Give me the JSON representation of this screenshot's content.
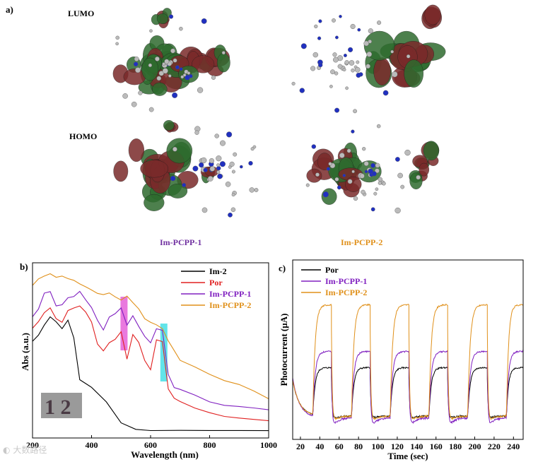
{
  "panel_a": {
    "label": "a)",
    "orbital_labels": [
      "LUMO",
      "HOMO"
    ],
    "molecule_names": [
      {
        "text": "Im-PCPP-1",
        "color": "#7030a0"
      },
      {
        "text": "Im-PCPP-2",
        "color": "#e0901a"
      }
    ]
  },
  "chart_data": [
    {
      "type": "line",
      "panel_label": "b)",
      "xlabel": "Wavelength (nm)",
      "ylabel": "Abs (a.u.)",
      "xlim": [
        200,
        1000
      ],
      "xticks": [
        200,
        400,
        600,
        800,
        1000
      ],
      "ylim": [
        0,
        1
      ],
      "highlight_bands": [
        {
          "x": 510,
          "color": "#e040d0"
        },
        {
          "x": 645,
          "color": "#20d8e0"
        }
      ],
      "inset_text": "1 2",
      "legend_position": "top-right",
      "series": [
        {
          "name": "Im-2",
          "color": "#000000",
          "x": [
            200,
            220,
            240,
            260,
            280,
            300,
            320,
            340,
            360,
            400,
            450,
            500,
            550,
            600,
            700,
            800,
            900,
            1000
          ],
          "y": [
            0.58,
            0.62,
            0.68,
            0.73,
            0.7,
            0.66,
            0.71,
            0.6,
            0.34,
            0.29,
            0.2,
            0.07,
            0.03,
            0.02,
            0.02,
            0.02,
            0.02,
            0.02
          ]
        },
        {
          "name": "Por",
          "color": "#e02020",
          "x": [
            200,
            220,
            240,
            260,
            280,
            300,
            320,
            340,
            360,
            380,
            400,
            420,
            440,
            460,
            480,
            500,
            520,
            540,
            560,
            580,
            600,
            620,
            640,
            660,
            680,
            700,
            750,
            800,
            850,
            900,
            950,
            1000
          ],
          "y": [
            0.66,
            0.7,
            0.76,
            0.79,
            0.72,
            0.7,
            0.77,
            0.79,
            0.8,
            0.76,
            0.7,
            0.56,
            0.52,
            0.57,
            0.59,
            0.64,
            0.47,
            0.62,
            0.57,
            0.46,
            0.4,
            0.59,
            0.58,
            0.28,
            0.22,
            0.2,
            0.16,
            0.13,
            0.11,
            0.1,
            0.09,
            0.08
          ]
        },
        {
          "name": "Im-PCPP-1",
          "color": "#8020c0",
          "x": [
            200,
            220,
            240,
            260,
            280,
            300,
            320,
            340,
            360,
            380,
            400,
            420,
            440,
            460,
            480,
            500,
            520,
            540,
            560,
            580,
            600,
            620,
            640,
            660,
            680,
            700,
            750,
            800,
            850,
            900,
            950,
            1000
          ],
          "y": [
            0.73,
            0.78,
            0.88,
            0.89,
            0.8,
            0.81,
            0.85,
            0.86,
            0.89,
            0.84,
            0.79,
            0.71,
            0.65,
            0.73,
            0.75,
            0.79,
            0.68,
            0.74,
            0.67,
            0.61,
            0.57,
            0.66,
            0.65,
            0.37,
            0.29,
            0.28,
            0.24,
            0.2,
            0.18,
            0.17,
            0.16,
            0.15
          ]
        },
        {
          "name": "Im-PCPP-2",
          "color": "#e0901a",
          "x": [
            200,
            220,
            240,
            260,
            280,
            300,
            320,
            340,
            360,
            380,
            400,
            420,
            440,
            460,
            480,
            500,
            520,
            540,
            560,
            580,
            600,
            620,
            640,
            660,
            680,
            700,
            750,
            800,
            850,
            900,
            950,
            1000
          ],
          "y": [
            0.93,
            0.97,
            0.99,
            1.0,
            0.98,
            0.99,
            0.97,
            0.96,
            0.94,
            0.92,
            0.9,
            0.88,
            0.87,
            0.88,
            0.86,
            0.84,
            0.86,
            0.82,
            0.78,
            0.72,
            0.7,
            0.68,
            0.66,
            0.58,
            0.52,
            0.46,
            0.42,
            0.37,
            0.33,
            0.31,
            0.27,
            0.22
          ]
        }
      ]
    },
    {
      "type": "line",
      "panel_label": "c)",
      "xlabel": "Time (sec)",
      "ylabel": "Photocurrent (µA)",
      "xlim": [
        12,
        250
      ],
      "xticks": [
        20,
        40,
        60,
        80,
        100,
        120,
        140,
        160,
        180,
        200,
        220,
        240
      ],
      "ylim": [
        0,
        1
      ],
      "legend_position": "top-left",
      "series": [
        {
          "name": "Por",
          "color": "#000000",
          "on_off_times": [
            [
              33,
              52
            ],
            [
              73,
              92
            ],
            [
              113,
              132
            ],
            [
              153,
              172
            ],
            [
              193,
              213
            ],
            [
              233,
              250
            ]
          ],
          "start_level": 0.33,
          "baseline": 0.13,
          "plateau": 0.4,
          "drop_floor": 0.11
        },
        {
          "name": "Im-PCPP-1",
          "color": "#8020c0",
          "on_off_times": [
            [
              33,
              52
            ],
            [
              73,
              92
            ],
            [
              113,
              132
            ],
            [
              153,
              172
            ],
            [
              193,
              213
            ],
            [
              233,
              250
            ]
          ],
          "start_level": 0.34,
          "baseline": 0.12,
          "plateau": 0.49,
          "drop_floor": 0.06
        },
        {
          "name": "Im-PCPP-2",
          "color": "#e0901a",
          "on_off_times": [
            [
              33,
              52
            ],
            [
              73,
              92
            ],
            [
              113,
              132
            ],
            [
              153,
              172
            ],
            [
              193,
              213
            ],
            [
              233,
              250
            ]
          ],
          "start_level": 0.33,
          "baseline": 0.13,
          "plateau": 0.75,
          "drop_floor": 0.09
        }
      ]
    }
  ],
  "watermark": "大数路径"
}
